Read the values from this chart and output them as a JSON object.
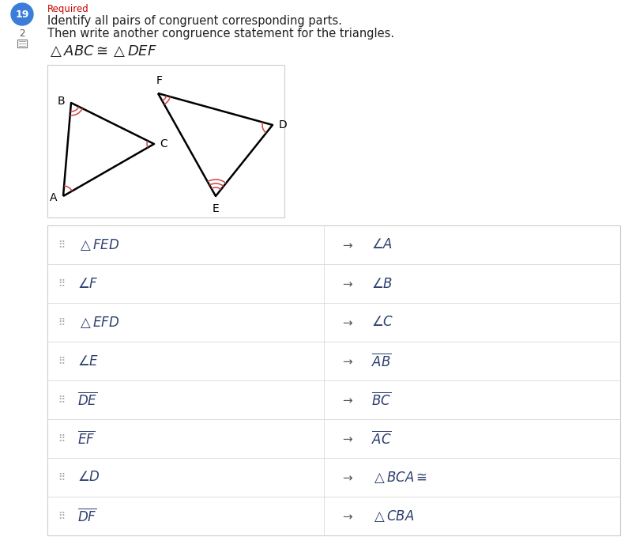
{
  "bg_color": "#ffffff",
  "question_number": "19",
  "required_color": "#cc0000",
  "required_text": "Required",
  "instruction1": "Identify all pairs of congruent corresponding parts.",
  "instruction2": "Then write another congruence statement for the triangles.",
  "text_color_dark": "#222222",
  "text_color_blue": "#2d3e6e",
  "grid_line_color": "#d8d8d8",
  "font_size_instruction": 10.5,
  "font_size_items": 12,
  "font_size_congruence": 13,
  "dot_color": "#aaaaaa",
  "arrow_color": "#555555",
  "arc_color": "#cc4444",
  "triangle_lw": 1.8
}
